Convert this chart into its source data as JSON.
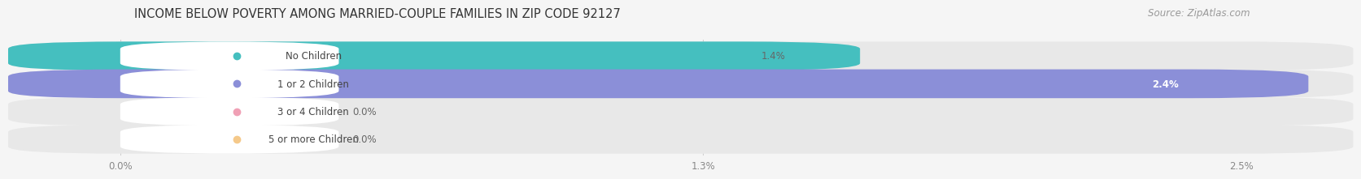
{
  "title": "INCOME BELOW POVERTY AMONG MARRIED-COUPLE FAMILIES IN ZIP CODE 92127",
  "source": "Source: ZipAtlas.com",
  "categories": [
    "No Children",
    "1 or 2 Children",
    "3 or 4 Children",
    "5 or more Children"
  ],
  "values": [
    1.4,
    2.4,
    0.0,
    0.0
  ],
  "max_val": 2.5,
  "bar_colors": [
    "#45BFBF",
    "#8B8FD8",
    "#F0A0B5",
    "#F5C98A"
  ],
  "label_bg_colors": [
    "#EAF7F7",
    "#EAEAF8",
    "#FCE8EE",
    "#FDF3E7"
  ],
  "label_dot_colors": [
    "#45BFBF",
    "#8B8FD8",
    "#F0A0B5",
    "#F5C98A"
  ],
  "value_labels": [
    "1.4%",
    "2.4%",
    "0.0%",
    "0.0%"
  ],
  "value_label_inside": [
    false,
    true,
    false,
    false
  ],
  "x_ticks": [
    0.0,
    1.3,
    2.5
  ],
  "x_tick_labels": [
    "0.0%",
    "1.3%",
    "2.5%"
  ],
  "bg_color": "#F5F5F5",
  "bar_bg_color": "#E8E8E8",
  "title_fontsize": 10.5,
  "source_fontsize": 8.5,
  "label_fontsize": 8.5,
  "value_fontsize": 8.5,
  "tick_fontsize": 8.5
}
